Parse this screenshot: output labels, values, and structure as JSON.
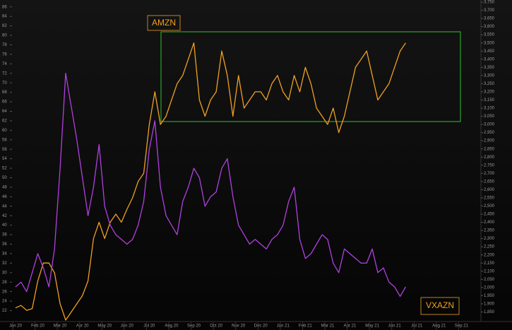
{
  "chart_data": {
    "type": "line",
    "labels": [
      "AMZN",
      "VXAZN"
    ],
    "categories": [
      "Jan 20",
      null,
      null,
      null,
      "Feb 20",
      null,
      null,
      null,
      "Mar 20",
      null,
      null,
      null,
      "Apr 20",
      null,
      null,
      null,
      "May 20",
      null,
      null,
      null,
      "Jun 20",
      null,
      null,
      null,
      "Jul 20",
      null,
      null,
      null,
      "Aug 20",
      null,
      null,
      null,
      "Sep 20",
      null,
      null,
      null,
      "Oct 20",
      null,
      null,
      null,
      "Nov 20",
      null,
      null,
      null,
      "Dec 20",
      null,
      null,
      null,
      "Jan 21",
      null,
      null,
      null,
      "Feb 21",
      null,
      null,
      null,
      "Mar 21",
      null,
      null,
      null,
      "Apr 21",
      null,
      null,
      null,
      "May 21",
      null,
      null,
      null,
      "Jun 21",
      null,
      null,
      null,
      "Jul 21",
      null,
      null,
      null,
      "Aug 21",
      null,
      null,
      null,
      "Sep 21",
      null,
      null,
      null
    ],
    "series": [
      {
        "name": "AMZN",
        "color": "#f0a020",
        "axis": "y2",
        "values": [
          1875,
          1890,
          1860,
          1870,
          2040,
          2150,
          2150,
          2090,
          1900,
          1800,
          1850,
          1900,
          1950,
          2040,
          2300,
          2400,
          2300,
          2400,
          2450,
          2400,
          2480,
          2550,
          2650,
          2700,
          3000,
          3200,
          3000,
          3050,
          3150,
          3250,
          3300,
          3400,
          3500,
          3150,
          3050,
          3150,
          3200,
          3450,
          3300,
          3050,
          3300,
          3100,
          3150,
          3200,
          3200,
          3150,
          3250,
          3300,
          3200,
          3150,
          3300,
          3200,
          3350,
          3250,
          3100,
          3050,
          3000,
          3100,
          2950,
          3050,
          3200,
          3350,
          3400,
          3450,
          3300,
          3150,
          3200,
          3250,
          3350,
          3450,
          3500,
          null,
          null,
          null,
          null,
          null,
          null,
          null,
          null,
          null,
          null,
          null,
          null,
          null
        ]
      },
      {
        "name": "VXAZN",
        "color": "#b040e0",
        "values": [
          27,
          28,
          26,
          30,
          34,
          31,
          27,
          35,
          52,
          72,
          65,
          58,
          50,
          42,
          48,
          57,
          44,
          40,
          38,
          37,
          36,
          37,
          40,
          45,
          56,
          62,
          48,
          42,
          40,
          38,
          45,
          48,
          52,
          50,
          44,
          46,
          47,
          52,
          54,
          46,
          40,
          38,
          36,
          37,
          36,
          35,
          37,
          38,
          40,
          45,
          48,
          37,
          33,
          34,
          36,
          38,
          37,
          32,
          30,
          35,
          34,
          33,
          32,
          32,
          35,
          30,
          31,
          28,
          27,
          25,
          27,
          null,
          null,
          null,
          null,
          null,
          null,
          null,
          null,
          null,
          null,
          null,
          null,
          null
        ]
      }
    ],
    "ylim": [
      20,
      87
    ],
    "yticks": [
      22,
      24,
      26,
      28,
      30,
      32,
      34,
      36,
      38,
      40,
      42,
      44,
      46,
      48,
      50,
      52,
      54,
      56,
      58,
      60,
      62,
      64,
      66,
      68,
      70,
      72,
      74,
      76,
      78,
      80,
      82,
      84,
      86
    ],
    "y2lim": [
      1800,
      3750
    ],
    "y2ticks": [
      {
        "value": 1850,
        "label": "1,850"
      },
      {
        "value": 1900,
        "label": "1,900"
      },
      {
        "value": 1950,
        "label": "1,950"
      },
      {
        "value": 2000,
        "label": "2,000"
      },
      {
        "value": 2050,
        "label": "2,050"
      },
      {
        "value": 2100,
        "label": "2,100"
      },
      {
        "value": 2150,
        "label": "2,150"
      },
      {
        "value": 2200,
        "label": "2,200"
      },
      {
        "value": 2250,
        "label": "2,250"
      },
      {
        "value": 2300,
        "label": "2,300"
      },
      {
        "value": 2350,
        "label": "2,350"
      },
      {
        "value": 2400,
        "label": "2,400"
      },
      {
        "value": 2450,
        "label": "2,450"
      },
      {
        "value": 2500,
        "label": "2,500"
      },
      {
        "value": 2550,
        "label": "2,550"
      },
      {
        "value": 2600,
        "label": "2,600"
      },
      {
        "value": 2650,
        "label": "2,650"
      },
      {
        "value": 2700,
        "label": "2,700"
      },
      {
        "value": 2750,
        "label": "2,750"
      },
      {
        "value": 2800,
        "label": "2,800"
      },
      {
        "value": 2850,
        "label": "2,850"
      },
      {
        "value": 2900,
        "label": "2,900"
      },
      {
        "value": 2950,
        "label": "2,950"
      },
      {
        "value": 3000,
        "label": "3,000"
      },
      {
        "value": 3050,
        "label": "3,050"
      },
      {
        "value": 3100,
        "label": "3,100"
      },
      {
        "value": 3150,
        "label": "3,150"
      },
      {
        "value": 3200,
        "label": "3,200"
      },
      {
        "value": 3250,
        "label": "3,250"
      },
      {
        "value": 3300,
        "label": "3,300"
      },
      {
        "value": 3350,
        "label": "3,350"
      },
      {
        "value": 3400,
        "label": "3,400"
      },
      {
        "value": 3450,
        "label": "3,450"
      },
      {
        "value": 3500,
        "label": "3,500"
      },
      {
        "value": 3550,
        "label": "3,550"
      },
      {
        "value": 3600,
        "label": "3,600"
      },
      {
        "value": 3650,
        "label": "3,650"
      },
      {
        "value": 3700,
        "label": "3,700"
      },
      {
        "value": 3750,
        "label": "3,750"
      }
    ]
  }
}
